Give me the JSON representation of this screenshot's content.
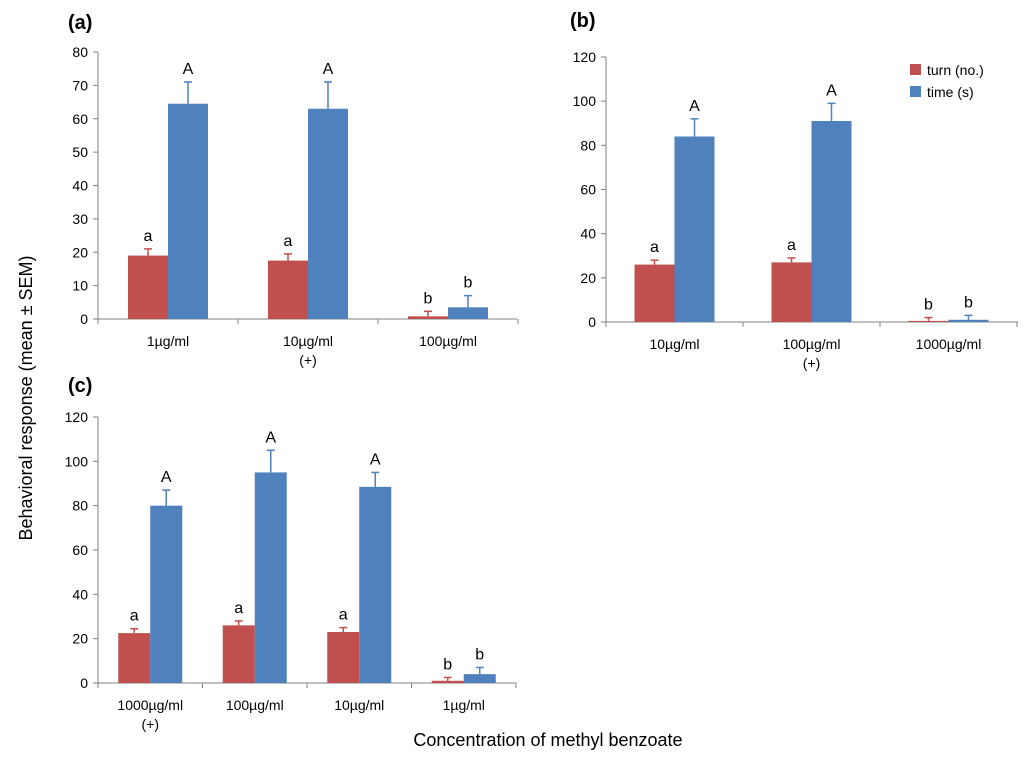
{
  "figure": {
    "ylabel": "Behavioral response (mean ± SEM)",
    "xlabel": "Concentration of methyl benzoate"
  },
  "colors": {
    "turn": "#c0504d",
    "time": "#4f81bd",
    "axis": "#808080"
  },
  "chart_data": [
    {
      "type": "bar",
      "panel": "(a)",
      "ylim": [
        0,
        80
      ],
      "yticks": [
        "0",
        "10",
        "20",
        "30",
        "40",
        "50",
        "60",
        "70",
        "80"
      ],
      "categories": [
        "1µg/ml",
        "10µg/ml\n(+)",
        "100µg/ml"
      ],
      "series": [
        {
          "name": "turn (no.)",
          "values": [
            19,
            17.5,
            0.8
          ],
          "errors": [
            2,
            2,
            1.5
          ],
          "letters": [
            "a",
            "a",
            "b"
          ]
        },
        {
          "name": "time (s)",
          "values": [
            64.5,
            63,
            3.5
          ],
          "errors": [
            6.5,
            8,
            3.5
          ],
          "letters": [
            "A",
            "A",
            "b"
          ]
        }
      ]
    },
    {
      "type": "bar",
      "panel": "(b)",
      "ylim": [
        0,
        120
      ],
      "yticks": [
        "0",
        "20",
        "40",
        "60",
        "80",
        "100",
        "120"
      ],
      "categories": [
        "10µg/ml",
        "100µg/ml\n(+)",
        "1000µg/ml"
      ],
      "legend": [
        "turn (no.)",
        "time (s)"
      ],
      "series": [
        {
          "name": "turn (no.)",
          "values": [
            26,
            27,
            0.5
          ],
          "errors": [
            2,
            2,
            1.5
          ],
          "letters": [
            "a",
            "a",
            "b"
          ]
        },
        {
          "name": "time (s)",
          "values": [
            84,
            91,
            1
          ],
          "errors": [
            8,
            8,
            2
          ],
          "letters": [
            "A",
            "A",
            "b"
          ]
        }
      ]
    },
    {
      "type": "bar",
      "panel": "(c)",
      "ylim": [
        0,
        120
      ],
      "yticks": [
        "0",
        "20",
        "40",
        "60",
        "80",
        "100",
        "120"
      ],
      "categories": [
        "1000µg/ml\n(+)",
        "100µg/ml",
        "10µg/ml",
        "1µg/ml"
      ],
      "series": [
        {
          "name": "turn (no.)",
          "values": [
            22.5,
            26,
            23,
            1
          ],
          "errors": [
            2,
            2,
            2,
            1.5
          ],
          "letters": [
            "a",
            "a",
            "a",
            "b"
          ]
        },
        {
          "name": "time (s)",
          "values": [
            80,
            95,
            88.5,
            4
          ],
          "errors": [
            7,
            10,
            6.5,
            3
          ],
          "letters": [
            "A",
            "A",
            "A",
            "b"
          ]
        }
      ]
    }
  ]
}
